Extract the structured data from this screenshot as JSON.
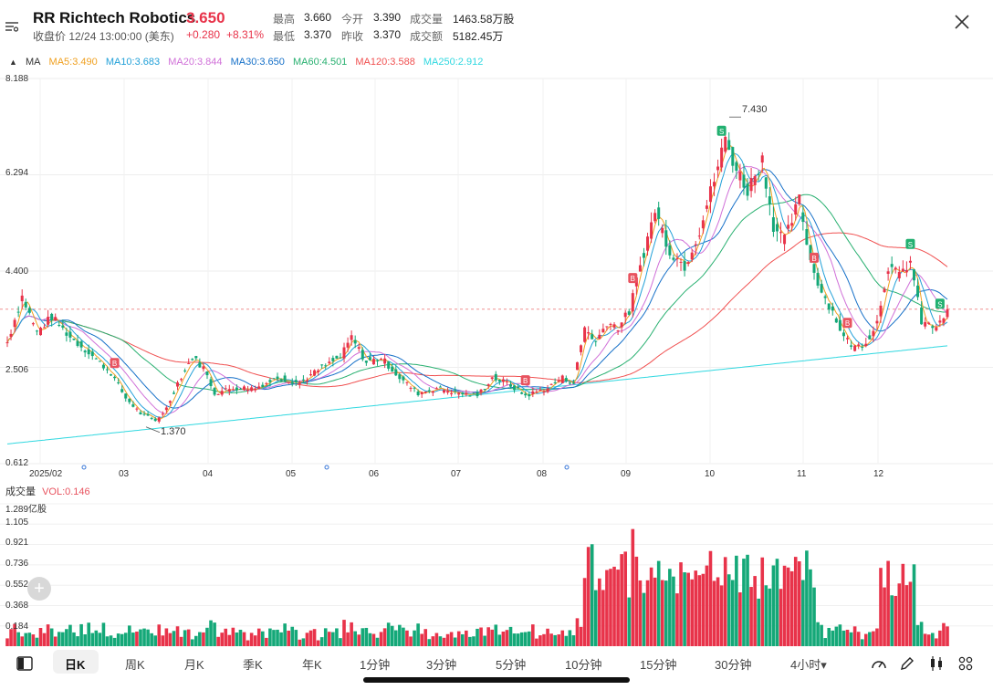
{
  "header": {
    "code": "RR",
    "name": "Richtech Robotics",
    "price": "3.650",
    "close_time": "收盘价 12/24 13:00:00 (美东)",
    "change": "+0.280",
    "change_pct": "+8.31%",
    "stats": [
      {
        "label": "最高",
        "value": "3.660",
        "red": true
      },
      {
        "label": "今开",
        "value": "3.390",
        "red": true
      },
      {
        "label": "成交量",
        "value": "1463.58万股",
        "red": false
      },
      {
        "label": "最低",
        "value": "3.370",
        "red": false
      },
      {
        "label": "昨收",
        "value": "3.370",
        "red": false
      },
      {
        "label": "成交额",
        "value": "5182.45万",
        "red": false
      }
    ]
  },
  "ma_legend": {
    "title": "MA",
    "items": [
      {
        "label": "MA5:3.490",
        "color": "#f0a020"
      },
      {
        "label": "MA10:3.683",
        "color": "#21a0d8"
      },
      {
        "label": "MA20:3.844",
        "color": "#d070d8"
      },
      {
        "label": "MA30:3.650",
        "color": "#1670c8"
      },
      {
        "label": "MA60:4.501",
        "color": "#28b070"
      },
      {
        "label": "MA120:3.588",
        "color": "#f05050"
      },
      {
        "label": "MA250:2.912",
        "color": "#30d8e0"
      }
    ]
  },
  "price_axis": {
    "ticks": [
      "8.188",
      "6.294",
      "4.400",
      "2.506",
      "0.612"
    ]
  },
  "x_axis": {
    "ticks": [
      "2025/02",
      "03",
      "04",
      "05",
      "06",
      "07",
      "08",
      "09",
      "10",
      "11",
      "12"
    ]
  },
  "annotations": {
    "high": "7.430",
    "low": "1.370",
    "buy": "B",
    "sell": "S"
  },
  "volume": {
    "title": "成交量",
    "vol_label": "VOL:0.146",
    "ticks": [
      "1.289亿股",
      "1.105",
      "0.921",
      "0.736",
      "0.552",
      "0.368",
      "0.184"
    ]
  },
  "colors": {
    "up": "#e8334a",
    "down": "#14a878",
    "buy": "#e8535f",
    "sell": "#22b070"
  },
  "footer": {
    "tabs": [
      "日K",
      "周K",
      "月K",
      "季K",
      "年K",
      "1分钟",
      "3分钟",
      "5分钟",
      "10分钟",
      "15分钟",
      "30分钟",
      "4小时▾"
    ],
    "active": "日K"
  },
  "chart_data": {
    "type": "candlestick",
    "title": "RR Richtech Robotics",
    "x_range": [
      "2025-02",
      "2025-12-24"
    ],
    "ylim": [
      0.612,
      8.188
    ],
    "y_ticks": [
      8.188,
      6.294,
      4.4,
      2.506,
      0.612
    ],
    "period_high": 7.43,
    "period_low": 1.37,
    "last_close": 3.65,
    "monthly_close_approx": {
      "categories": [
        "2025/02",
        "03",
        "04",
        "05",
        "06",
        "07",
        "08",
        "09",
        "10",
        "11",
        "12"
      ],
      "values": [
        2.9,
        1.7,
        2.1,
        2.2,
        2.5,
        2.0,
        1.9,
        3.0,
        5.6,
        3.2,
        3.65
      ]
    },
    "moving_averages": {
      "MA5": 3.49,
      "MA10": 3.683,
      "MA20": 3.844,
      "MA30": 3.65,
      "MA60": 4.501,
      "MA120": 3.588,
      "MA250": 2.912
    },
    "volume_unit": "亿股",
    "volume_ylim": [
      0,
      1.289
    ],
    "volume_ticks": [
      1.289,
      1.105,
      0.921,
      0.736,
      0.552,
      0.368,
      0.184
    ],
    "last_volume": 0.146
  }
}
